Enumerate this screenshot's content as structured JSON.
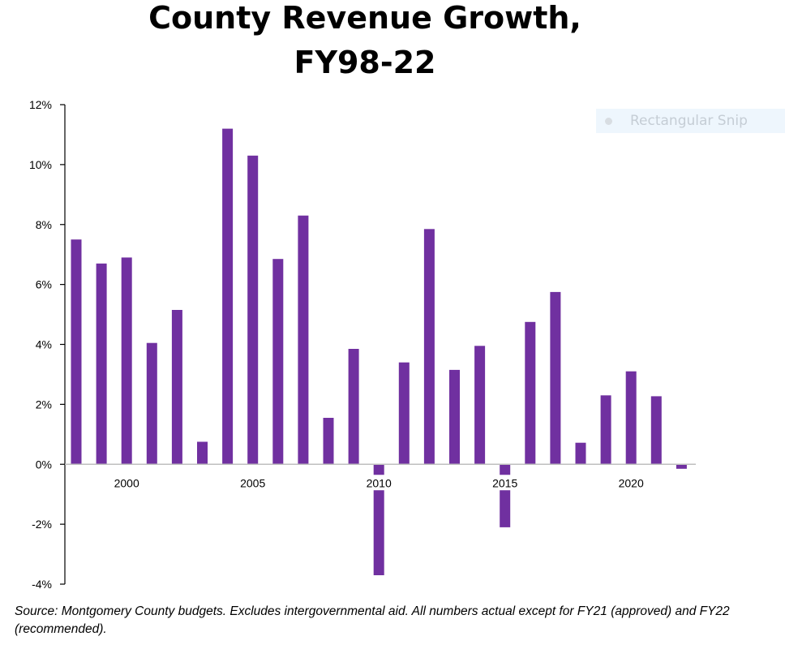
{
  "chart_data": {
    "type": "bar",
    "title_lines": [
      "County Revenue Growth,",
      "FY98-22"
    ],
    "x": [
      1998,
      1999,
      2000,
      2001,
      2002,
      2003,
      2004,
      2005,
      2006,
      2007,
      2008,
      2009,
      2010,
      2011,
      2012,
      2013,
      2014,
      2015,
      2016,
      2017,
      2018,
      2019,
      2020,
      2021,
      2022
    ],
    "values": [
      7.5,
      6.7,
      6.9,
      4.05,
      5.15,
      0.75,
      11.2,
      10.3,
      6.85,
      8.3,
      1.55,
      3.85,
      -3.7,
      3.4,
      7.85,
      3.15,
      3.95,
      -2.1,
      4.75,
      5.75,
      0.72,
      2.3,
      3.1,
      2.27,
      -0.15
    ],
    "ylim": [
      -4,
      12
    ],
    "yticks": [
      -4,
      -2,
      0,
      2,
      4,
      6,
      8,
      10,
      12
    ],
    "ytick_labels": [
      "-4%",
      "-2%",
      "0%",
      "2%",
      "4%",
      "6%",
      "8%",
      "10%",
      "12%"
    ],
    "xticks": [
      2000,
      2005,
      2010,
      2015,
      2020
    ],
    "xtick_labels": [
      "2000",
      "2005",
      "2010",
      "2015",
      "2020"
    ],
    "bar_color": "#7030a0",
    "grid": false,
    "legend": "none"
  },
  "overlay": {
    "snip_label": "Rectangular Snip"
  },
  "source": "Source: Montgomery County budgets.  Excludes intergovernmental aid.  All numbers actual except for FY21 (approved) and FY22 (recommended)."
}
